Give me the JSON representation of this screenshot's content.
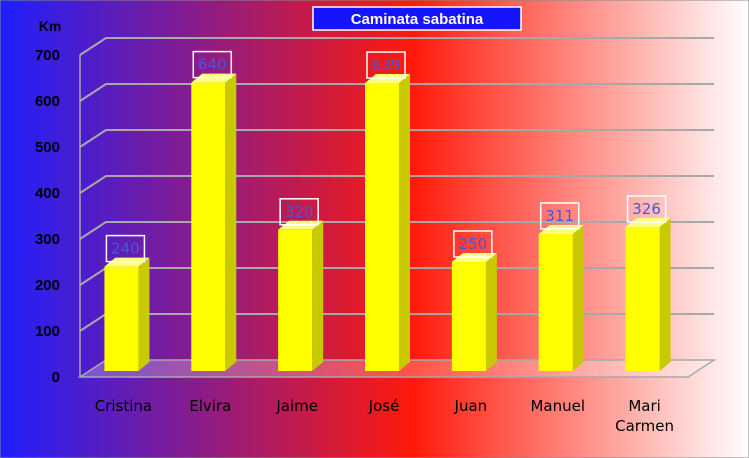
{
  "chart_data": {
    "type": "bar",
    "title": "Caminata sabatina",
    "ylabel": "Km",
    "xlabel": "",
    "categories": [
      "Cristina",
      "Elvira",
      "Jaime",
      "José",
      "Juan",
      "Manuel",
      "Mari Carmen"
    ],
    "values": [
      240,
      640,
      320,
      639,
      250,
      311,
      326
    ],
    "ylim": [
      0,
      700
    ],
    "yticks": [
      0,
      100,
      200,
      300,
      400,
      500,
      600,
      700
    ],
    "grid": true,
    "legend": "none",
    "style": "3d-column",
    "colors": {
      "bar_front": "#ffff00",
      "bar_side": "#c9c900",
      "bar_top": "#ffff80",
      "data_label": "#4a55d9",
      "title_bg": "#1414ff",
      "background_left": "#1e1eff",
      "background_mid": "#ff1a0a",
      "background_right": "#ffffff"
    }
  }
}
